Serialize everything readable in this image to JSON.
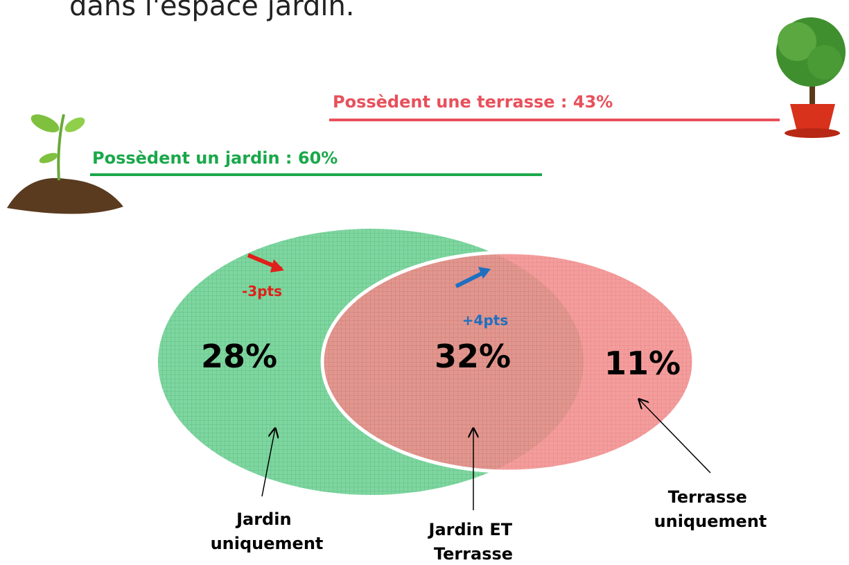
{
  "header": {
    "title": "dans l'espace jardin."
  },
  "legend": {
    "terrasse": "Possèdent une terrasse : 43%",
    "jardin": "Possèdent un jardin : 60%"
  },
  "regions": {
    "jardin_only": {
      "value": "28%",
      "change": "-3pts",
      "label": [
        "Jardin",
        "uniquement"
      ]
    },
    "both": {
      "value": "32%",
      "change": "+4pts",
      "label": [
        "Jardin ET",
        "Terrasse"
      ]
    },
    "terrasse_only": {
      "value": "11%",
      "label": [
        "Terrasse",
        "uniquement"
      ]
    }
  }
}
